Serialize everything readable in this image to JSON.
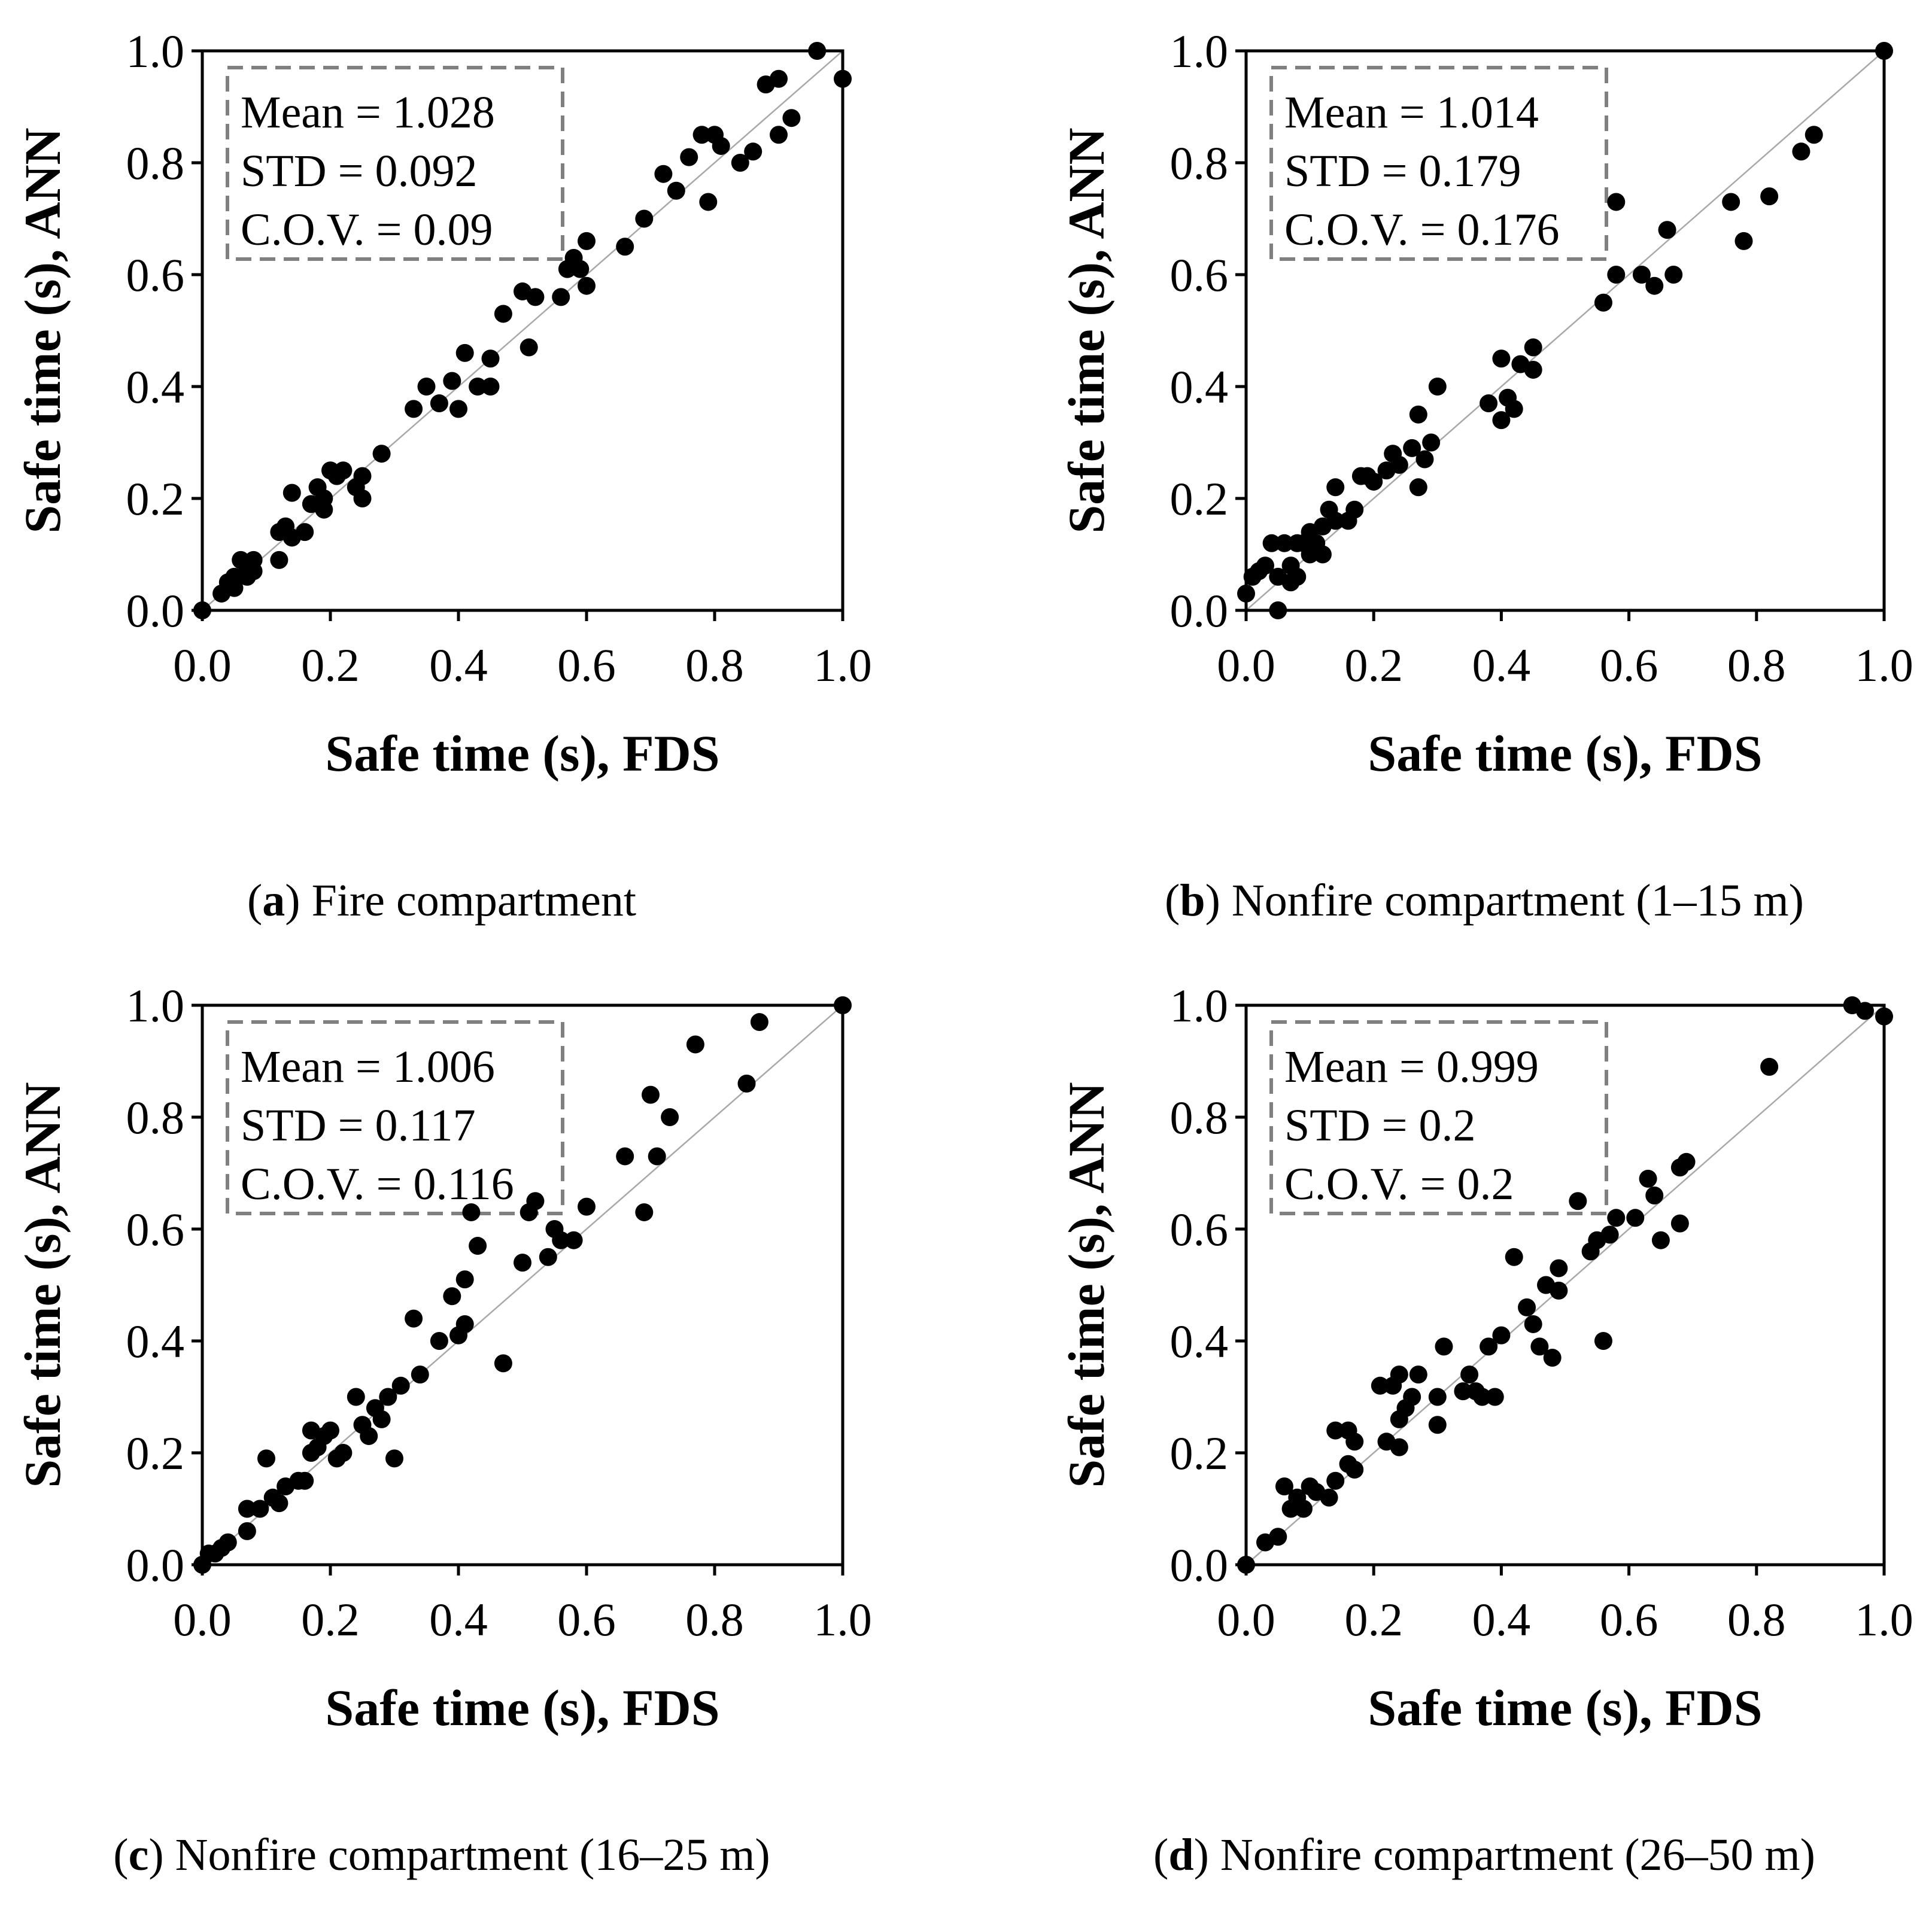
{
  "figure": {
    "xlabel": "Safe time (s), FDS",
    "ylabel": "Safe time (s), ANN",
    "tick_labels": [
      "0.0",
      "0.2",
      "0.4",
      "0.6",
      "0.8",
      "1.0"
    ]
  },
  "chart_data": [
    {
      "type": "scatter",
      "xlabel": "Safe time (s), FDS",
      "ylabel": "Safe time (s), ANN",
      "xlim": [
        0,
        1
      ],
      "ylim": [
        0,
        1
      ],
      "reference_line": "y = x",
      "caption": {
        "letter": "a",
        "text": ") Fire compartment"
      },
      "stats": {
        "mean": "Mean = 1.028",
        "std": "STD = 0.092",
        "cov": "C.O.V. = 0.09"
      },
      "points": [
        [
          0,
          0
        ],
        [
          0.03,
          0.03
        ],
        [
          0.04,
          0.05
        ],
        [
          0.05,
          0.06
        ],
        [
          0.05,
          0.04
        ],
        [
          0.06,
          0.09
        ],
        [
          0.07,
          0.07
        ],
        [
          0.07,
          0.06
        ],
        [
          0.08,
          0.09
        ],
        [
          0.08,
          0.07
        ],
        [
          0.12,
          0.09
        ],
        [
          0.12,
          0.14
        ],
        [
          0.13,
          0.15
        ],
        [
          0.14,
          0.21
        ],
        [
          0.14,
          0.13
        ],
        [
          0.16,
          0.14
        ],
        [
          0.17,
          0.19
        ],
        [
          0.18,
          0.22
        ],
        [
          0.19,
          0.2
        ],
        [
          0.19,
          0.18
        ],
        [
          0.2,
          0.25
        ],
        [
          0.22,
          0.25
        ],
        [
          0.21,
          0.24
        ],
        [
          0.24,
          0.22
        ],
        [
          0.25,
          0.24
        ],
        [
          0.25,
          0.2
        ],
        [
          0.28,
          0.28
        ],
        [
          0.33,
          0.36
        ],
        [
          0.35,
          0.4
        ],
        [
          0.37,
          0.37
        ],
        [
          0.39,
          0.41
        ],
        [
          0.4,
          0.36
        ],
        [
          0.41,
          0.46
        ],
        [
          0.43,
          0.4
        ],
        [
          0.45,
          0.4
        ],
        [
          0.45,
          0.45
        ],
        [
          0.47,
          0.53
        ],
        [
          0.5,
          0.57
        ],
        [
          0.52,
          0.56
        ],
        [
          0.51,
          0.47
        ],
        [
          0.56,
          0.56
        ],
        [
          0.57,
          0.61
        ],
        [
          0.58,
          0.63
        ],
        [
          0.59,
          0.61
        ],
        [
          0.6,
          0.58
        ],
        [
          0.6,
          0.66
        ],
        [
          0.66,
          0.65
        ],
        [
          0.69,
          0.7
        ],
        [
          0.72,
          0.78
        ],
        [
          0.74,
          0.75
        ],
        [
          0.76,
          0.81
        ],
        [
          0.78,
          0.85
        ],
        [
          0.79,
          0.73
        ],
        [
          0.8,
          0.85
        ],
        [
          0.81,
          0.83
        ],
        [
          0.84,
          0.8
        ],
        [
          0.86,
          0.82
        ],
        [
          0.88,
          0.94
        ],
        [
          0.9,
          0.95
        ],
        [
          0.9,
          0.85
        ],
        [
          0.92,
          0.88
        ],
        [
          0.96,
          1.0
        ],
        [
          1.0,
          0.95
        ]
      ]
    },
    {
      "type": "scatter",
      "xlabel": "Safe time (s), FDS",
      "ylabel": "Safe time (s), ANN",
      "xlim": [
        0,
        1
      ],
      "ylim": [
        0,
        1
      ],
      "reference_line": "y = x",
      "caption": {
        "letter": "b",
        "text": ") Nonfire compartment (1–15 m)"
      },
      "stats": {
        "mean": "Mean = 1.014",
        "std": "STD = 0.179",
        "cov": "C.O.V. = 0.176"
      },
      "points": [
        [
          0,
          0.03
        ],
        [
          0.01,
          0.06
        ],
        [
          0.02,
          0.07
        ],
        [
          0.03,
          0.08
        ],
        [
          0.04,
          0.12
        ],
        [
          0.05,
          0.0
        ],
        [
          0.05,
          0.06
        ],
        [
          0.06,
          0.12
        ],
        [
          0.07,
          0.08
        ],
        [
          0.07,
          0.05
        ],
        [
          0.08,
          0.06
        ],
        [
          0.08,
          0.12
        ],
        [
          0.09,
          0.12
        ],
        [
          0.1,
          0.1
        ],
        [
          0.1,
          0.14
        ],
        [
          0.11,
          0.12
        ],
        [
          0.12,
          0.1
        ],
        [
          0.12,
          0.15
        ],
        [
          0.13,
          0.18
        ],
        [
          0.14,
          0.16
        ],
        [
          0.14,
          0.22
        ],
        [
          0.16,
          0.16
        ],
        [
          0.17,
          0.18
        ],
        [
          0.18,
          0.24
        ],
        [
          0.19,
          0.24
        ],
        [
          0.2,
          0.23
        ],
        [
          0.22,
          0.25
        ],
        [
          0.23,
          0.28
        ],
        [
          0.24,
          0.26
        ],
        [
          0.26,
          0.29
        ],
        [
          0.27,
          0.22
        ],
        [
          0.27,
          0.35
        ],
        [
          0.28,
          0.27
        ],
        [
          0.29,
          0.3
        ],
        [
          0.3,
          0.4
        ],
        [
          0.38,
          0.37
        ],
        [
          0.4,
          0.45
        ],
        [
          0.4,
          0.34
        ],
        [
          0.41,
          0.38
        ],
        [
          0.42,
          0.36
        ],
        [
          0.43,
          0.44
        ],
        [
          0.45,
          0.43
        ],
        [
          0.45,
          0.47
        ],
        [
          0.56,
          0.55
        ],
        [
          0.58,
          0.6
        ],
        [
          0.58,
          0.73
        ],
        [
          0.62,
          0.6
        ],
        [
          0.64,
          0.58
        ],
        [
          0.66,
          0.68
        ],
        [
          0.67,
          0.6
        ],
        [
          0.76,
          0.73
        ],
        [
          0.78,
          0.66
        ],
        [
          0.82,
          0.74
        ],
        [
          0.87,
          0.82
        ],
        [
          0.89,
          0.85
        ],
        [
          1.0,
          1.0
        ]
      ]
    },
    {
      "type": "scatter",
      "xlabel": "Safe time (s), FDS",
      "ylabel": "Safe time (s), ANN",
      "xlim": [
        0,
        1
      ],
      "ylim": [
        0,
        1
      ],
      "reference_line": "y = x",
      "caption": {
        "letter": "c",
        "text": ") Nonfire compartment (16–25 m)"
      },
      "stats": {
        "mean": "Mean = 1.006",
        "std": "STD = 0.117",
        "cov": "C.O.V. = 0.116"
      },
      "points": [
        [
          0,
          0.0
        ],
        [
          0.01,
          0.02
        ],
        [
          0.02,
          0.02
        ],
        [
          0.03,
          0.03
        ],
        [
          0.04,
          0.04
        ],
        [
          0.07,
          0.06
        ],
        [
          0.07,
          0.1
        ],
        [
          0.09,
          0.1
        ],
        [
          0.1,
          0.19
        ],
        [
          0.11,
          0.12
        ],
        [
          0.12,
          0.11
        ],
        [
          0.13,
          0.14
        ],
        [
          0.15,
          0.15
        ],
        [
          0.16,
          0.15
        ],
        [
          0.17,
          0.2
        ],
        [
          0.17,
          0.24
        ],
        [
          0.18,
          0.21
        ],
        [
          0.19,
          0.23
        ],
        [
          0.2,
          0.24
        ],
        [
          0.21,
          0.19
        ],
        [
          0.22,
          0.2
        ],
        [
          0.24,
          0.3
        ],
        [
          0.25,
          0.25
        ],
        [
          0.26,
          0.23
        ],
        [
          0.27,
          0.28
        ],
        [
          0.28,
          0.26
        ],
        [
          0.29,
          0.3
        ],
        [
          0.3,
          0.19
        ],
        [
          0.31,
          0.32
        ],
        [
          0.33,
          0.44
        ],
        [
          0.34,
          0.34
        ],
        [
          0.37,
          0.4
        ],
        [
          0.39,
          0.48
        ],
        [
          0.4,
          0.41
        ],
        [
          0.41,
          0.43
        ],
        [
          0.41,
          0.51
        ],
        [
          0.42,
          0.63
        ],
        [
          0.43,
          0.57
        ],
        [
          0.47,
          0.36
        ],
        [
          0.5,
          0.54
        ],
        [
          0.51,
          0.63
        ],
        [
          0.52,
          0.65
        ],
        [
          0.54,
          0.55
        ],
        [
          0.55,
          0.6
        ],
        [
          0.56,
          0.58
        ],
        [
          0.58,
          0.58
        ],
        [
          0.6,
          0.64
        ],
        [
          0.66,
          0.73
        ],
        [
          0.69,
          0.63
        ],
        [
          0.7,
          0.84
        ],
        [
          0.71,
          0.73
        ],
        [
          0.73,
          0.8
        ],
        [
          0.77,
          0.93
        ],
        [
          0.85,
          0.86
        ],
        [
          0.87,
          0.97
        ],
        [
          1.0,
          1.0
        ]
      ]
    },
    {
      "type": "scatter",
      "xlabel": "Safe time (s), FDS",
      "ylabel": "Safe time (s), ANN",
      "xlim": [
        0,
        1
      ],
      "ylim": [
        0,
        1
      ],
      "reference_line": "y = x",
      "caption": {
        "letter": "d",
        "text": ") Nonfire compartment (26–50 m)"
      },
      "stats": {
        "mean": "Mean = 0.999",
        "std": "STD = 0.2",
        "cov": "C.O.V. = 0.2"
      },
      "points": [
        [
          0,
          0.0
        ],
        [
          0.03,
          0.04
        ],
        [
          0.05,
          0.05
        ],
        [
          0.06,
          0.14
        ],
        [
          0.07,
          0.1
        ],
        [
          0.08,
          0.12
        ],
        [
          0.09,
          0.1
        ],
        [
          0.1,
          0.14
        ],
        [
          0.11,
          0.13
        ],
        [
          0.13,
          0.12
        ],
        [
          0.14,
          0.15
        ],
        [
          0.14,
          0.24
        ],
        [
          0.16,
          0.24
        ],
        [
          0.16,
          0.18
        ],
        [
          0.17,
          0.17
        ],
        [
          0.17,
          0.22
        ],
        [
          0.21,
          0.32
        ],
        [
          0.22,
          0.22
        ],
        [
          0.23,
          0.32
        ],
        [
          0.24,
          0.34
        ],
        [
          0.24,
          0.21
        ],
        [
          0.24,
          0.26
        ],
        [
          0.25,
          0.28
        ],
        [
          0.26,
          0.3
        ],
        [
          0.27,
          0.34
        ],
        [
          0.3,
          0.3
        ],
        [
          0.3,
          0.25
        ],
        [
          0.31,
          0.39
        ],
        [
          0.34,
          0.31
        ],
        [
          0.35,
          0.34
        ],
        [
          0.36,
          0.31
        ],
        [
          0.37,
          0.3
        ],
        [
          0.38,
          0.39
        ],
        [
          0.39,
          0.3
        ],
        [
          0.4,
          0.41
        ],
        [
          0.42,
          0.55
        ],
        [
          0.44,
          0.46
        ],
        [
          0.45,
          0.43
        ],
        [
          0.46,
          0.39
        ],
        [
          0.47,
          0.5
        ],
        [
          0.48,
          0.37
        ],
        [
          0.49,
          0.49
        ],
        [
          0.49,
          0.53
        ],
        [
          0.52,
          0.65
        ],
        [
          0.54,
          0.56
        ],
        [
          0.55,
          0.58
        ],
        [
          0.56,
          0.4
        ],
        [
          0.57,
          0.59
        ],
        [
          0.58,
          0.62
        ],
        [
          0.61,
          0.62
        ],
        [
          0.63,
          0.69
        ],
        [
          0.64,
          0.66
        ],
        [
          0.65,
          0.58
        ],
        [
          0.68,
          0.71
        ],
        [
          0.68,
          0.61
        ],
        [
          0.69,
          0.72
        ],
        [
          0.82,
          0.89
        ],
        [
          0.95,
          1.0
        ],
        [
          0.97,
          0.99
        ],
        [
          1.0,
          0.98
        ]
      ]
    }
  ]
}
